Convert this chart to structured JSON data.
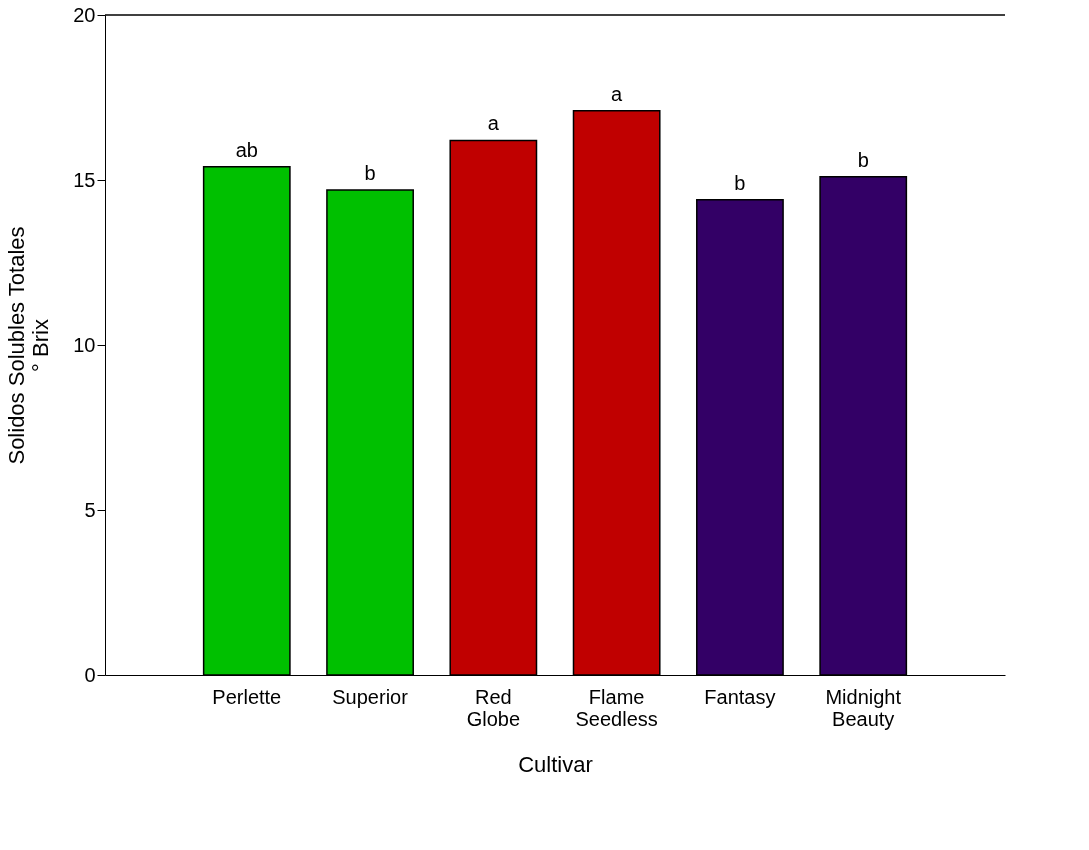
{
  "chart_data": {
    "type": "bar",
    "xlabel": "Cultivar",
    "ylabel": "Solidos Solubles Totales\n° Brix",
    "categories": [
      "Perlette",
      "Superior",
      "Red\nGlobe",
      "Flame\nSeedless",
      "Fantasy",
      "Midnight\nBeauty"
    ],
    "values": [
      15.4,
      14.7,
      16.2,
      17.1,
      14.4,
      15.1
    ],
    "colors": [
      "#00c000",
      "#00c000",
      "#c00000",
      "#c00000",
      "#330066",
      "#330066"
    ],
    "ylim": [
      0,
      20
    ],
    "yticks": [
      0,
      5,
      10,
      15,
      20
    ],
    "grid": false,
    "annotations": [
      {
        "text": "ab",
        "x": "Perlette",
        "y": 15.4
      },
      {
        "text": "b",
        "x": "Superior",
        "y": 14.7
      },
      {
        "text": "a",
        "x": "Red\nGlobe",
        "y": 16.2
      },
      {
        "text": "a",
        "x": "Flame\nSeedless",
        "y": 17.1
      },
      {
        "text": "b",
        "x": "Fantasy",
        "y": 14.4
      },
      {
        "text": "b",
        "x": "Midnight\nBeauty",
        "y": 15.1
      }
    ]
  }
}
